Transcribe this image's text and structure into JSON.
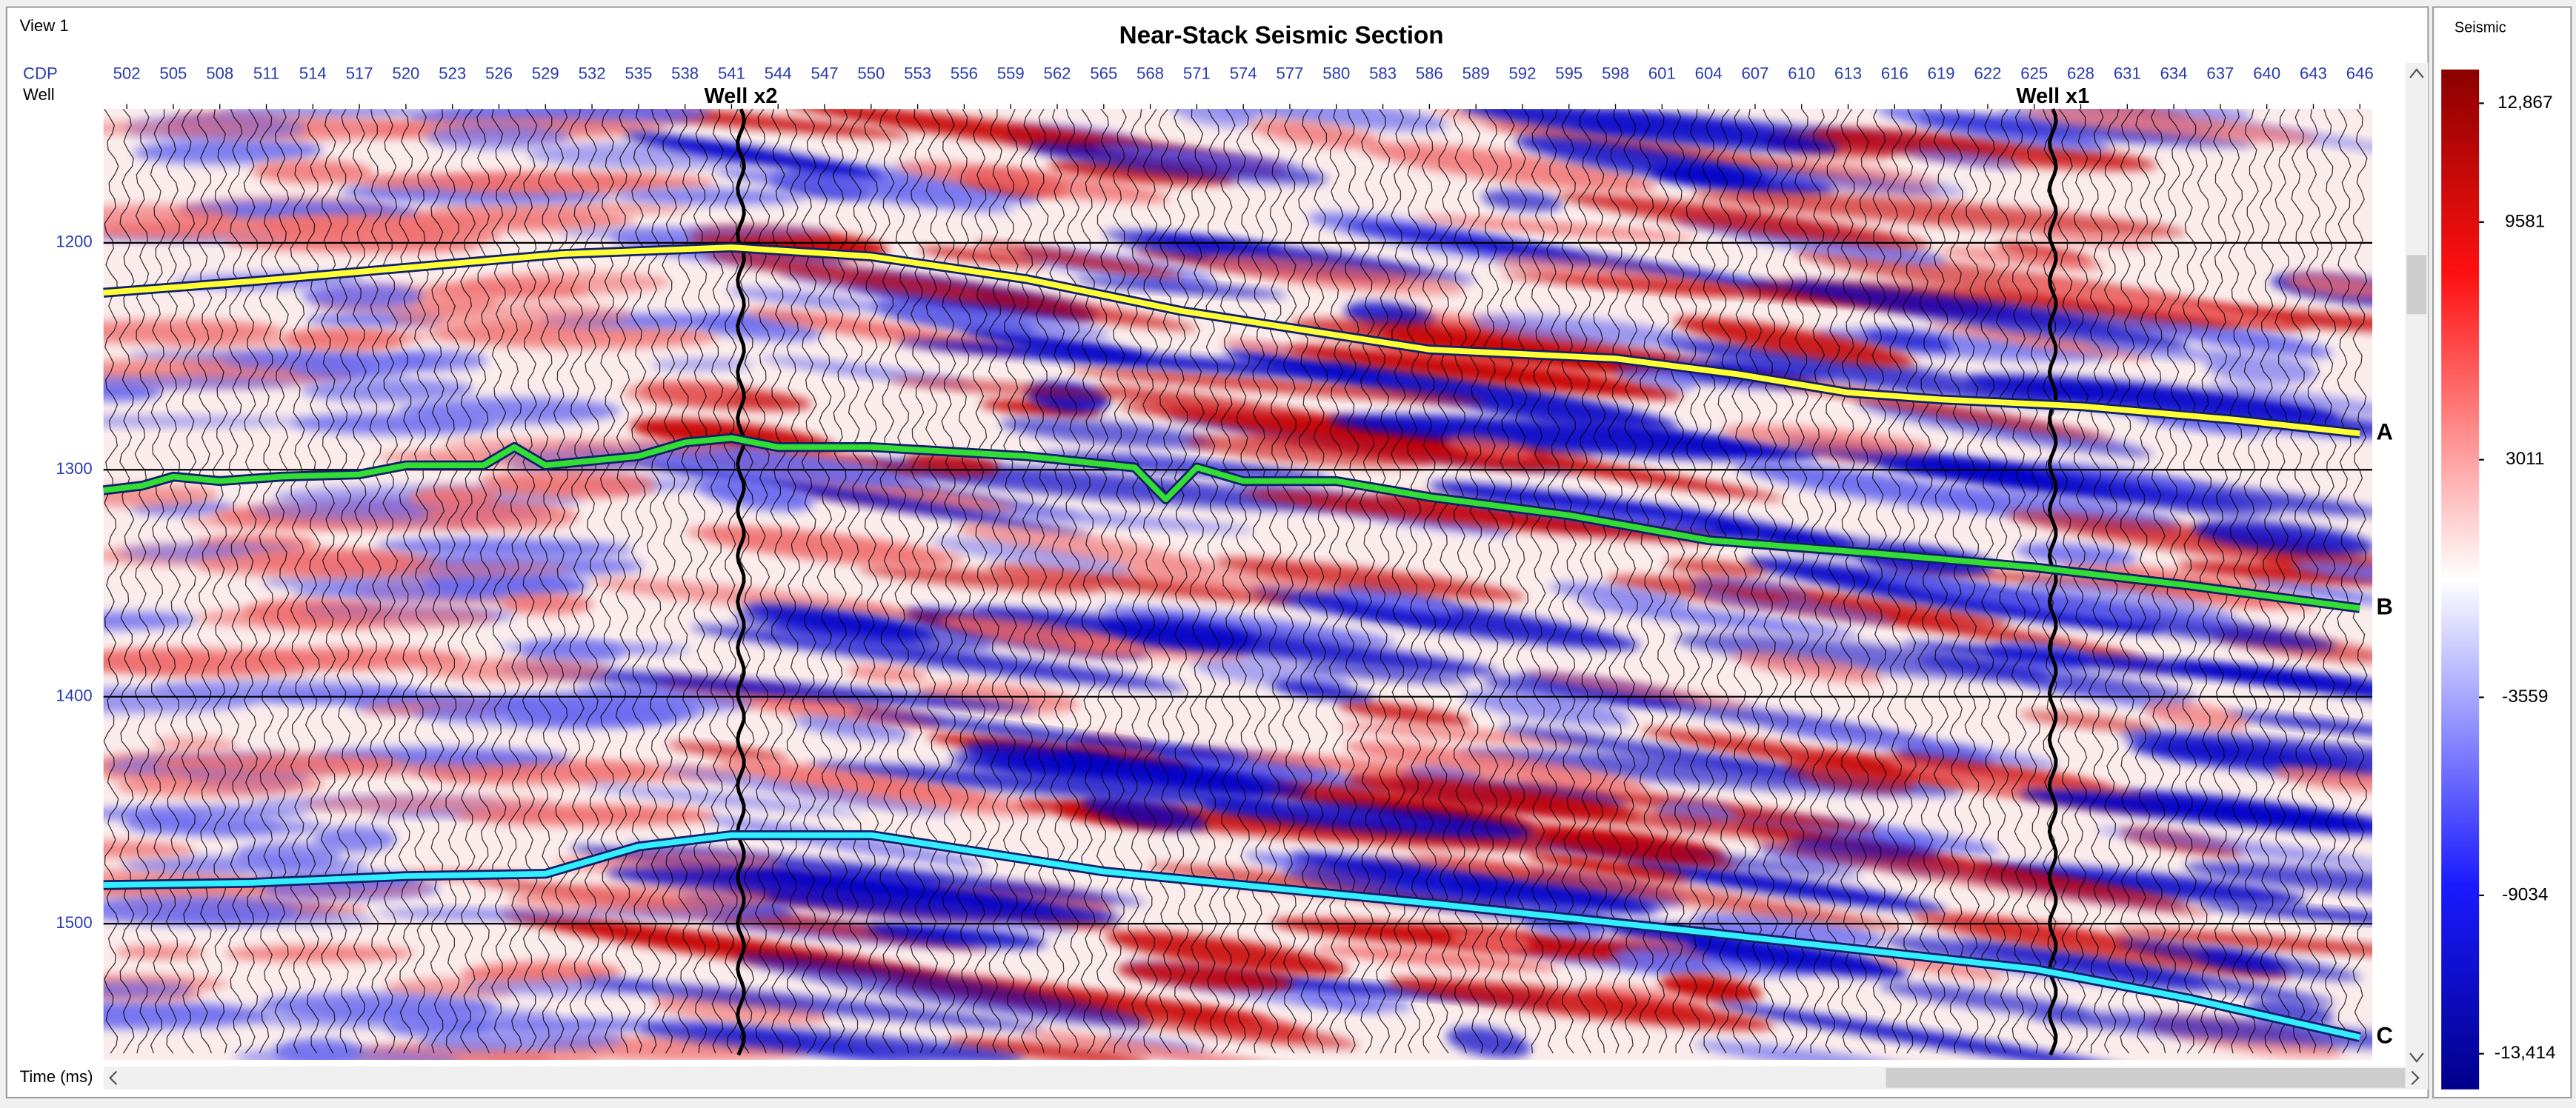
{
  "chart_data": {
    "type": "seismic-section",
    "title": "Near-Stack Seismic Section",
    "view_label": "View 1",
    "x_label": "CDP",
    "well_row_label": "Well",
    "y_label": "Time (ms)",
    "xlim": [
      500.5,
      646.8
    ],
    "xticks": [
      502,
      505,
      508,
      511,
      514,
      517,
      520,
      523,
      526,
      529,
      532,
      535,
      538,
      541,
      544,
      547,
      550,
      553,
      556,
      559,
      562,
      565,
      568,
      571,
      574,
      577,
      580,
      583,
      586,
      589,
      592,
      595,
      598,
      601,
      604,
      607,
      610,
      613,
      616,
      619,
      622,
      625,
      628,
      631,
      634,
      637,
      640,
      643,
      646
    ],
    "ylim": [
      1141,
      1560
    ],
    "yticks": [
      1200,
      1300,
      1400,
      1500
    ],
    "horizons": [
      {
        "name": "A",
        "color": "#ffff33",
        "x": [
          500.5,
          510,
          520,
          530,
          541,
          550,
          560,
          570,
          586,
          598,
          606,
          613,
          619,
          628,
          638,
          646
        ],
        "values": [
          1222,
          1217,
          1211,
          1205,
          1202,
          1206,
          1216,
          1230,
          1247,
          1251,
          1258,
          1266,
          1269,
          1272,
          1278,
          1284
        ]
      },
      {
        "name": "B",
        "color": "#33dd33",
        "x": [
          500.5,
          503,
          505,
          508,
          512,
          517,
          520,
          525,
          527,
          529,
          535,
          538,
          541,
          544,
          550,
          560,
          567,
          569,
          571,
          574,
          580,
          586,
          595,
          604,
          615,
          625,
          635,
          646
        ],
        "values": [
          1309,
          1307,
          1303,
          1305,
          1303,
          1302,
          1298,
          1298,
          1290,
          1298,
          1294,
          1288,
          1286,
          1290,
          1290,
          1294,
          1299,
          1313,
          1299,
          1305,
          1305,
          1312,
          1320,
          1331,
          1337,
          1343,
          1351,
          1361
        ]
      },
      {
        "name": "C",
        "color": "#33eeff",
        "x": [
          500.5,
          510,
          520,
          529,
          535,
          541,
          550,
          565,
          586,
          604,
          625,
          635,
          646
        ],
        "values": [
          1483,
          1482,
          1479,
          1478,
          1466,
          1461,
          1461,
          1477,
          1491,
          1504,
          1520,
          1533,
          1550
        ]
      }
    ],
    "wells": [
      {
        "name": "Well x2",
        "cdp": 541.6
      },
      {
        "name": "Well x1",
        "cdp": 626.2
      }
    ],
    "colorbar": {
      "title": "Seismic",
      "clim": [
        -14400,
        13800
      ],
      "ticks": [
        {
          "value": 12867,
          "label": "12,867"
        },
        9581,
        3011,
        -3559,
        -9034,
        {
          "value": -13414,
          "label": "-13,414"
        }
      ]
    }
  }
}
